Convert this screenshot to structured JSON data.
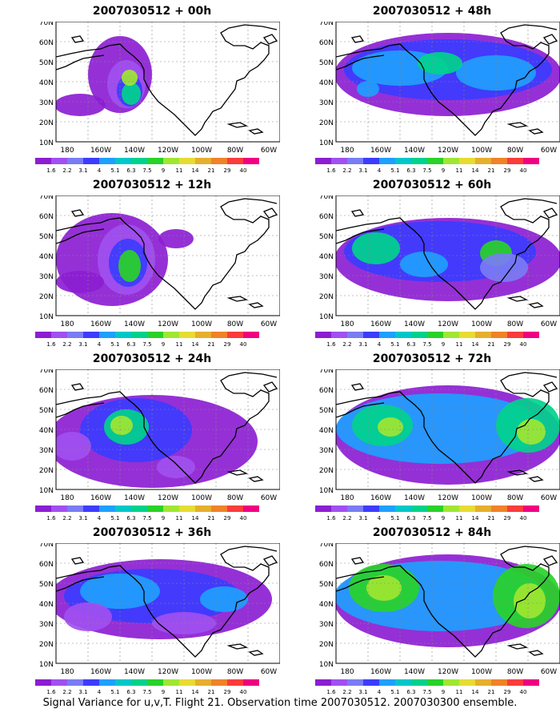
{
  "panels": [
    {
      "title": "2007030512 + 00h",
      "lead": "00h"
    },
    {
      "title": "2007030512 + 48h",
      "lead": "48h"
    },
    {
      "title": "2007030512 + 12h",
      "lead": "12h"
    },
    {
      "title": "2007030512 + 60h",
      "lead": "60h"
    },
    {
      "title": "2007030512 + 24h",
      "lead": "24h"
    },
    {
      "title": "2007030512 + 72h",
      "lead": "72h"
    },
    {
      "title": "2007030512 + 36h",
      "lead": "36h"
    },
    {
      "title": "2007030512 + 84h",
      "lead": "84h"
    }
  ],
  "axes": {
    "lat_labels": [
      "70N",
      "60N",
      "50N",
      "40N",
      "30N",
      "20N",
      "10N"
    ],
    "lon_labels": [
      "180",
      "160W",
      "140W",
      "120W",
      "100W",
      "80W",
      "60W"
    ]
  },
  "colorbar": {
    "labels": [
      "1.6",
      "2.2",
      "3.1",
      "4",
      "5.1",
      "6.3",
      "7.5",
      "9",
      "11",
      "14",
      "21",
      "29",
      "40"
    ],
    "colors": [
      "#8c1ed2",
      "#a050f0",
      "#7a7cf4",
      "#3c3cff",
      "#1ea0ff",
      "#00c8c8",
      "#00d28c",
      "#28d228",
      "#a0e632",
      "#e6dc32",
      "#e6af2d",
      "#f08228",
      "#fa3c3c",
      "#f00082"
    ]
  },
  "caption": "Signal Variance for u,v,T. Flight 21. Observation time 2007030512. 2007030300 ensemble."
}
